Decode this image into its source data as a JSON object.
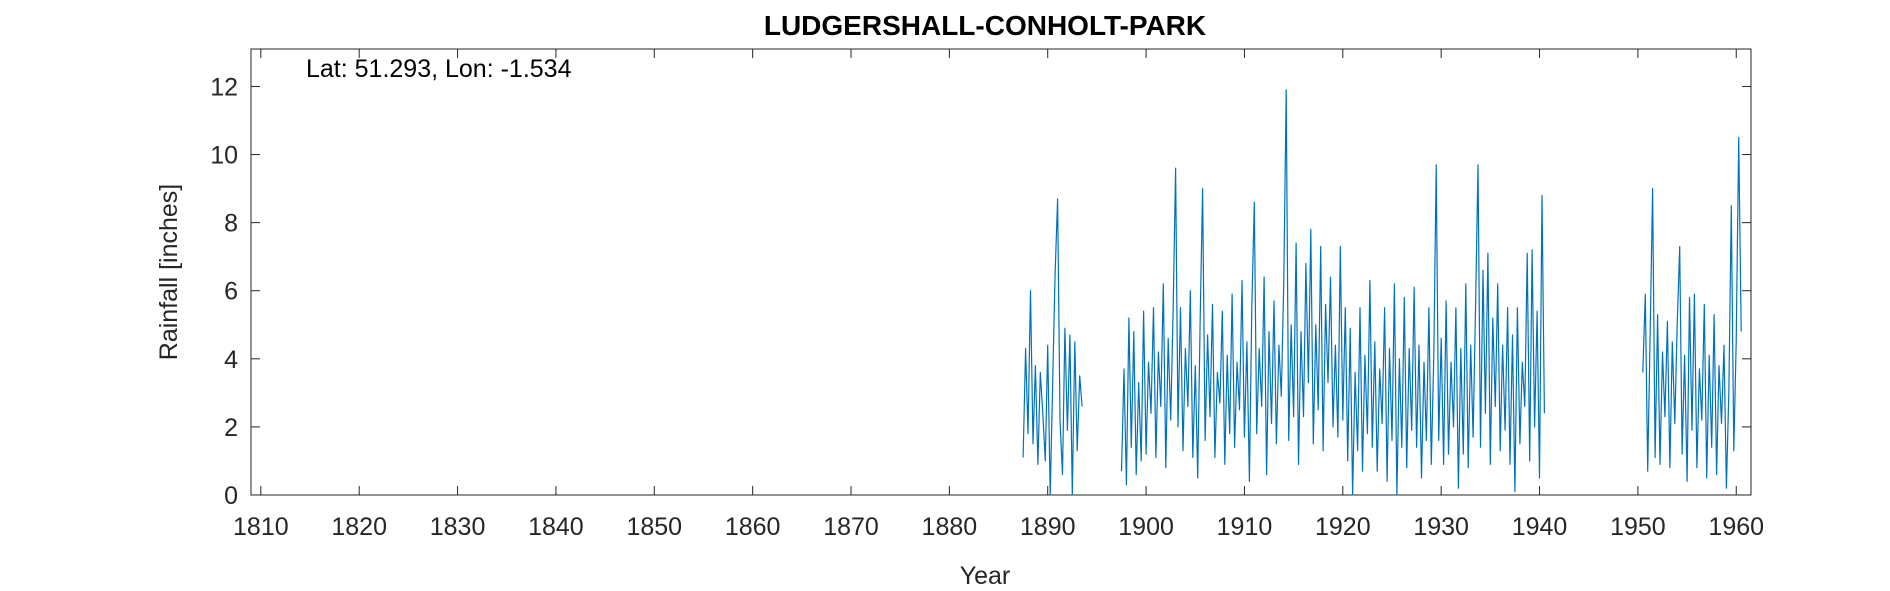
{
  "chart_data": {
    "type": "line",
    "title": "LUDGERSHALL-CONHOLT-PARK",
    "xlabel": "Year",
    "ylabel": "Rainfall [inches]",
    "annotation": "Lat: 51.293, Lon: -1.534",
    "xlim": [
      1809,
      1961.5
    ],
    "ylim": [
      0,
      13.1
    ],
    "xticks": [
      1810,
      1820,
      1830,
      1840,
      1850,
      1860,
      1870,
      1880,
      1890,
      1900,
      1910,
      1920,
      1930,
      1940,
      1950,
      1960
    ],
    "yticks": [
      0,
      2,
      4,
      6,
      8,
      10,
      12
    ],
    "grid": false,
    "series": [
      {
        "color": "#0072BD",
        "segments": [
          {
            "x": [
              1887.5,
              1887.75,
              1888.0,
              1888.25,
              1888.5,
              1888.75,
              1889.0,
              1889.25,
              1889.5,
              1889.75,
              1890.0,
              1890.25,
              1890.5,
              1890.75,
              1891.0,
              1891.25,
              1891.5,
              1891.75,
              1892.0,
              1892.25,
              1892.5,
              1892.75,
              1893.0,
              1893.25,
              1893.5
            ],
            "y": [
              1.1,
              4.3,
              1.8,
              6.0,
              1.5,
              3.8,
              0.9,
              3.6,
              2.4,
              1.0,
              4.4,
              0.0,
              3.2,
              6.5,
              8.7,
              2.2,
              0.6,
              4.9,
              1.9,
              4.7,
              0.0,
              4.5,
              1.3,
              3.5,
              2.6
            ]
          },
          {
            "x": [
              1897.5,
              1897.75,
              1898.0,
              1898.25,
              1898.5,
              1898.75,
              1899.0,
              1899.25,
              1899.5,
              1899.75,
              1900.0,
              1900.25,
              1900.5,
              1900.75,
              1901.0,
              1901.25,
              1901.5,
              1901.75,
              1902.0,
              1902.25,
              1902.5,
              1902.75,
              1903.0,
              1903.25,
              1903.5,
              1903.75,
              1904.0,
              1904.25,
              1904.5,
              1904.75,
              1905.0,
              1905.25,
              1905.5,
              1905.75,
              1906.0,
              1906.25,
              1906.5,
              1906.75,
              1907.0,
              1907.25,
              1907.5,
              1907.75,
              1908.0,
              1908.25,
              1908.5,
              1908.75,
              1909.0,
              1909.25,
              1909.5,
              1909.75,
              1910.0,
              1910.25,
              1910.5,
              1910.75,
              1911.0,
              1911.25,
              1911.5,
              1911.75,
              1912.0,
              1912.25,
              1912.5,
              1912.75,
              1913.0,
              1913.25,
              1913.5,
              1913.75,
              1914.0,
              1914.25,
              1914.5,
              1914.75,
              1915.0,
              1915.25,
              1915.5,
              1915.75,
              1916.0,
              1916.25,
              1916.5,
              1916.75,
              1917.0,
              1917.25,
              1917.5,
              1917.75,
              1918.0,
              1918.25,
              1918.5,
              1918.75,
              1919.0,
              1919.25,
              1919.5,
              1919.75,
              1920.0,
              1920.25,
              1920.5,
              1920.75,
              1921.0,
              1921.25,
              1921.5,
              1921.75,
              1922.0,
              1922.25,
              1922.5,
              1922.75,
              1923.0,
              1923.25,
              1923.5,
              1923.75,
              1924.0,
              1924.25,
              1924.5,
              1924.75,
              1925.0,
              1925.25,
              1925.5,
              1925.75,
              1926.0,
              1926.25,
              1926.5,
              1926.75,
              1927.0,
              1927.25,
              1927.5,
              1927.75,
              1928.0,
              1928.25,
              1928.5,
              1928.75,
              1929.0,
              1929.25,
              1929.5,
              1929.75,
              1930.0,
              1930.25,
              1930.5,
              1930.75,
              1931.0,
              1931.25,
              1931.5,
              1931.75,
              1932.0,
              1932.25,
              1932.5,
              1932.75,
              1933.0,
              1933.25,
              1933.5,
              1933.75,
              1934.0,
              1934.25,
              1934.5,
              1934.75,
              1935.0,
              1935.25,
              1935.5,
              1935.75,
              1936.0,
              1936.25,
              1936.5,
              1936.75,
              1937.0,
              1937.25,
              1937.5,
              1937.75,
              1938.0,
              1938.25,
              1938.5,
              1938.75,
              1939.0,
              1939.25,
              1939.5,
              1939.75,
              1940.0,
              1940.25,
              1940.5
            ],
            "y": [
              0.7,
              3.7,
              0.3,
              5.2,
              1.4,
              4.8,
              0.6,
              3.3,
              1.0,
              5.4,
              1.2,
              3.9,
              2.4,
              5.5,
              1.1,
              4.2,
              2.6,
              6.2,
              0.8,
              4.6,
              2.2,
              5.4,
              9.6,
              2.0,
              5.5,
              1.3,
              4.3,
              2.6,
              6.0,
              1.1,
              3.8,
              0.5,
              5.2,
              9.0,
              1.6,
              4.7,
              2.3,
              5.6,
              1.1,
              3.6,
              2.7,
              5.4,
              0.9,
              4.1,
              1.8,
              5.9,
              1.4,
              3.9,
              2.5,
              6.3,
              1.7,
              4.5,
              0.4,
              5.5,
              8.6,
              1.8,
              4.3,
              2.6,
              6.4,
              0.6,
              4.8,
              2.1,
              5.7,
              1.5,
              4.4,
              2.9,
              6.3,
              11.9,
              1.6,
              5.0,
              2.3,
              7.4,
              0.9,
              4.8,
              2.3,
              6.8,
              3.3,
              7.8,
              1.5,
              5.0,
              2.5,
              7.3,
              1.3,
              5.6,
              3.3,
              6.4,
              2.0,
              4.4,
              1.7,
              7.3,
              2.2,
              5.5,
              1.0,
              4.9,
              0.0,
              3.6,
              1.3,
              5.5,
              0.7,
              4.1,
              1.8,
              6.3,
              1.4,
              4.5,
              0.7,
              3.7,
              2.1,
              5.5,
              0.4,
              4.3,
              1.6,
              6.2,
              0.0,
              4.0,
              1.4,
              5.8,
              0.8,
              4.3,
              1.9,
              6.1,
              1.4,
              4.4,
              0.5,
              3.9,
              1.6,
              5.5,
              0.9,
              4.1,
              9.7,
              1.6,
              4.6,
              0.9,
              5.7,
              1.2,
              3.9,
              2.0,
              5.5,
              0.2,
              4.3,
              1.2,
              6.2,
              0.8,
              4.4,
              1.7,
              5.6,
              9.7,
              1.4,
              6.6,
              2.4,
              7.1,
              0.9,
              5.2,
              2.6,
              6.2,
              1.3,
              4.4,
              1.9,
              5.5,
              0.9,
              4.7,
              0.1,
              5.5,
              1.5,
              3.9,
              2.6,
              7.1,
              1.0,
              7.2,
              2.0,
              5.4,
              0.5,
              8.8,
              2.4
            ]
          },
          {
            "x": [
              1950.5,
              1950.75,
              1951.0,
              1951.25,
              1951.5,
              1951.75,
              1952.0,
              1952.25,
              1952.5,
              1952.75,
              1953.0,
              1953.25,
              1953.5,
              1953.75,
              1954.0,
              1954.25,
              1954.5,
              1954.75,
              1955.0,
              1955.25,
              1955.5,
              1955.75,
              1956.0,
              1956.25,
              1956.5,
              1956.75,
              1957.0,
              1957.25,
              1957.5,
              1957.75,
              1958.0,
              1958.25,
              1958.5,
              1958.75,
              1959.0,
              1959.25,
              1959.5,
              1959.75,
              1960.0,
              1960.25,
              1960.5
            ],
            "y": [
              3.6,
              5.9,
              0.7,
              4.8,
              9.0,
              1.1,
              5.3,
              0.9,
              4.2,
              2.3,
              5.1,
              0.8,
              4.5,
              2.1,
              5.0,
              7.3,
              1.2,
              4.1,
              0.4,
              5.8,
              1.9,
              5.9,
              0.8,
              3.7,
              2.2,
              5.6,
              0.5,
              4.1,
              1.4,
              5.3,
              0.6,
              3.8,
              2.1,
              4.4,
              0.2,
              3.1,
              8.5,
              1.3,
              4.5,
              10.5,
              4.8
            ]
          }
        ]
      }
    ]
  }
}
